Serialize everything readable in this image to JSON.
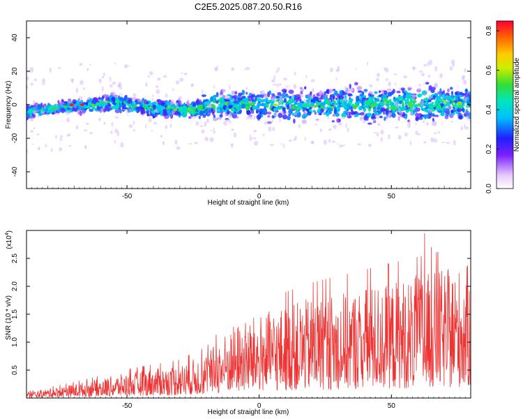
{
  "title": "C2E5.2025.087.20.50.R16",
  "chart_data": [
    {
      "type": "heatmap",
      "xlabel": "Height of straight line (km)",
      "ylabel": "Frequency (Hz)",
      "xlim": [
        -88,
        80
      ],
      "ylim": [
        -50,
        50
      ],
      "xticks": [
        -50,
        0,
        50
      ],
      "yticks": [
        -40,
        -20,
        0,
        20,
        40
      ],
      "colorbar": {
        "label": "Normalized spectral amplitude",
        "range": [
          0.0,
          0.85
        ],
        "ticks": [
          "0.0",
          "0.2",
          "0.4",
          "0.6",
          "0.8"
        ]
      },
      "ridge": {
        "description_points_x": [
          -88,
          -70,
          -55,
          -40,
          -25,
          -18,
          0,
          20,
          40,
          60,
          80
        ],
        "center_freq": [
          -4,
          -1,
          1,
          -2,
          -3,
          0,
          0,
          0,
          0,
          1,
          1
        ],
        "halfwidth": [
          3,
          3,
          4,
          4,
          4,
          6,
          7,
          7,
          8,
          8,
          8
        ]
      }
    },
    {
      "type": "line",
      "xlabel": "Height of straight line (km)",
      "ylabel": "SNR (10 * v/v)",
      "yscale_label": "(x10",
      "yscale_exp": "4",
      "yscale_close": ")",
      "xlim": [
        -88,
        80
      ],
      "ylim": [
        0,
        3.0
      ],
      "xticks": [
        -50,
        0,
        50
      ],
      "yticks": [
        "0.5",
        "1.0",
        "1.5",
        "2.0",
        "2.5"
      ],
      "color": "#ee3333",
      "envelope_x": [
        -88,
        -70,
        -50,
        -30,
        -20,
        -10,
        0,
        20,
        40,
        60,
        80
      ],
      "envelope_y": [
        0.1,
        0.25,
        0.45,
        0.6,
        0.8,
        1.3,
        1.5,
        1.8,
        2.0,
        2.2,
        2.4
      ]
    }
  ]
}
